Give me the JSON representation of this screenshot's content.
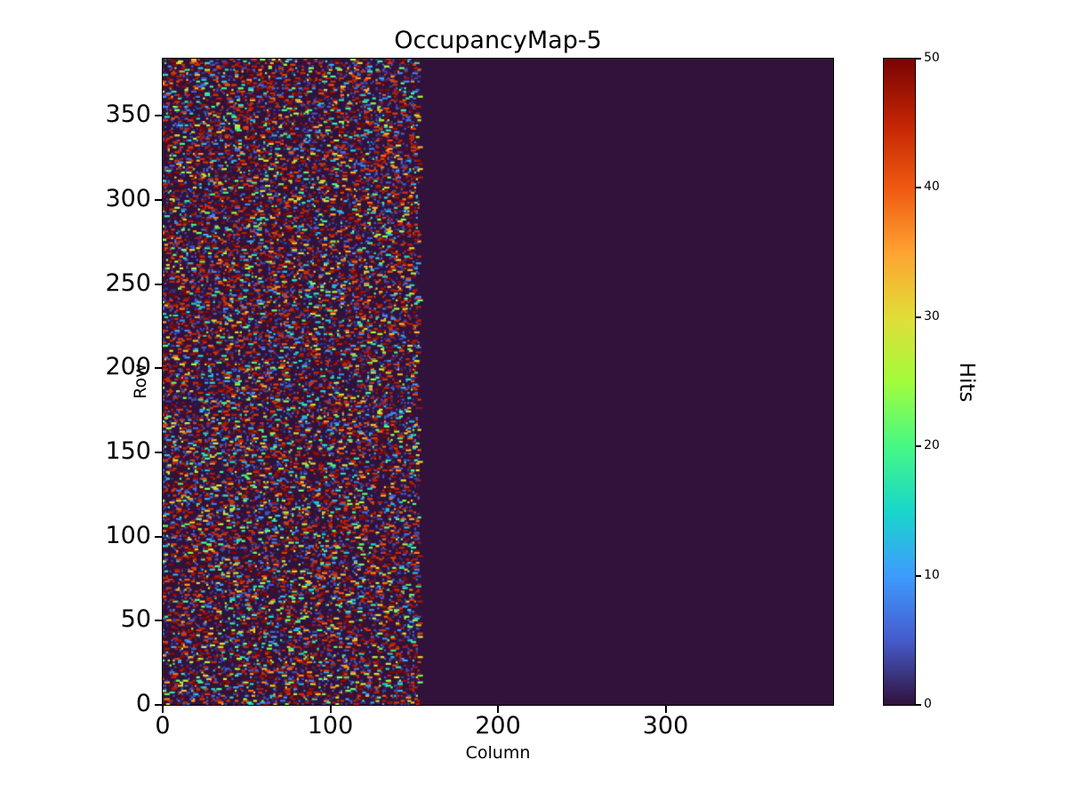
{
  "chart_data": {
    "type": "heatmap",
    "title": "OccupancyMap-5",
    "xlabel": "Column",
    "ylabel": "Row",
    "colorbar_label": "Hits",
    "grid": {
      "cols": 400,
      "rows": 384
    },
    "x_range": [
      0,
      400
    ],
    "y_range": [
      0,
      384
    ],
    "value_range": [
      0,
      50
    ],
    "x_ticks": [
      0,
      100,
      200,
      300
    ],
    "y_ticks": [
      0,
      50,
      100,
      150,
      200,
      250,
      300,
      350
    ],
    "colorbar_ticks": [
      0,
      10,
      20,
      30,
      40,
      50
    ],
    "colormap": "turbo",
    "colormap_stops": [
      {
        "t": 0.0,
        "color": "#30123b"
      },
      {
        "t": 0.1,
        "color": "#455bcd"
      },
      {
        "t": 0.2,
        "color": "#3e9bfe"
      },
      {
        "t": 0.3,
        "color": "#18d6cb"
      },
      {
        "t": 0.4,
        "color": "#46f884"
      },
      {
        "t": 0.5,
        "color": "#a2fc3c"
      },
      {
        "t": 0.6,
        "color": "#e1dd37"
      },
      {
        "t": 0.7,
        "color": "#fea331"
      },
      {
        "t": 0.8,
        "color": "#ef5911"
      },
      {
        "t": 0.9,
        "color": "#c22403"
      },
      {
        "t": 1.0,
        "color": "#7a0403"
      }
    ],
    "background_value": 0,
    "active_region": {
      "col_min": 0,
      "col_max": 153
    },
    "speckle": {
      "seed": 5,
      "dash_start_probability": 0.18,
      "dash_len_min": 1,
      "dash_len_max": 3,
      "low_noise_probability": 0.12,
      "value_mix": {
        "high_frac": 0.55,
        "high_min": 42,
        "high_max": 50,
        "mid_frac": 0.2,
        "mid_min": 22,
        "mid_max": 42,
        "low_min": 2,
        "low_max": 22
      }
    },
    "axis_color": "#000000",
    "text_color": "#000000",
    "background_color": "#ffffff"
  }
}
